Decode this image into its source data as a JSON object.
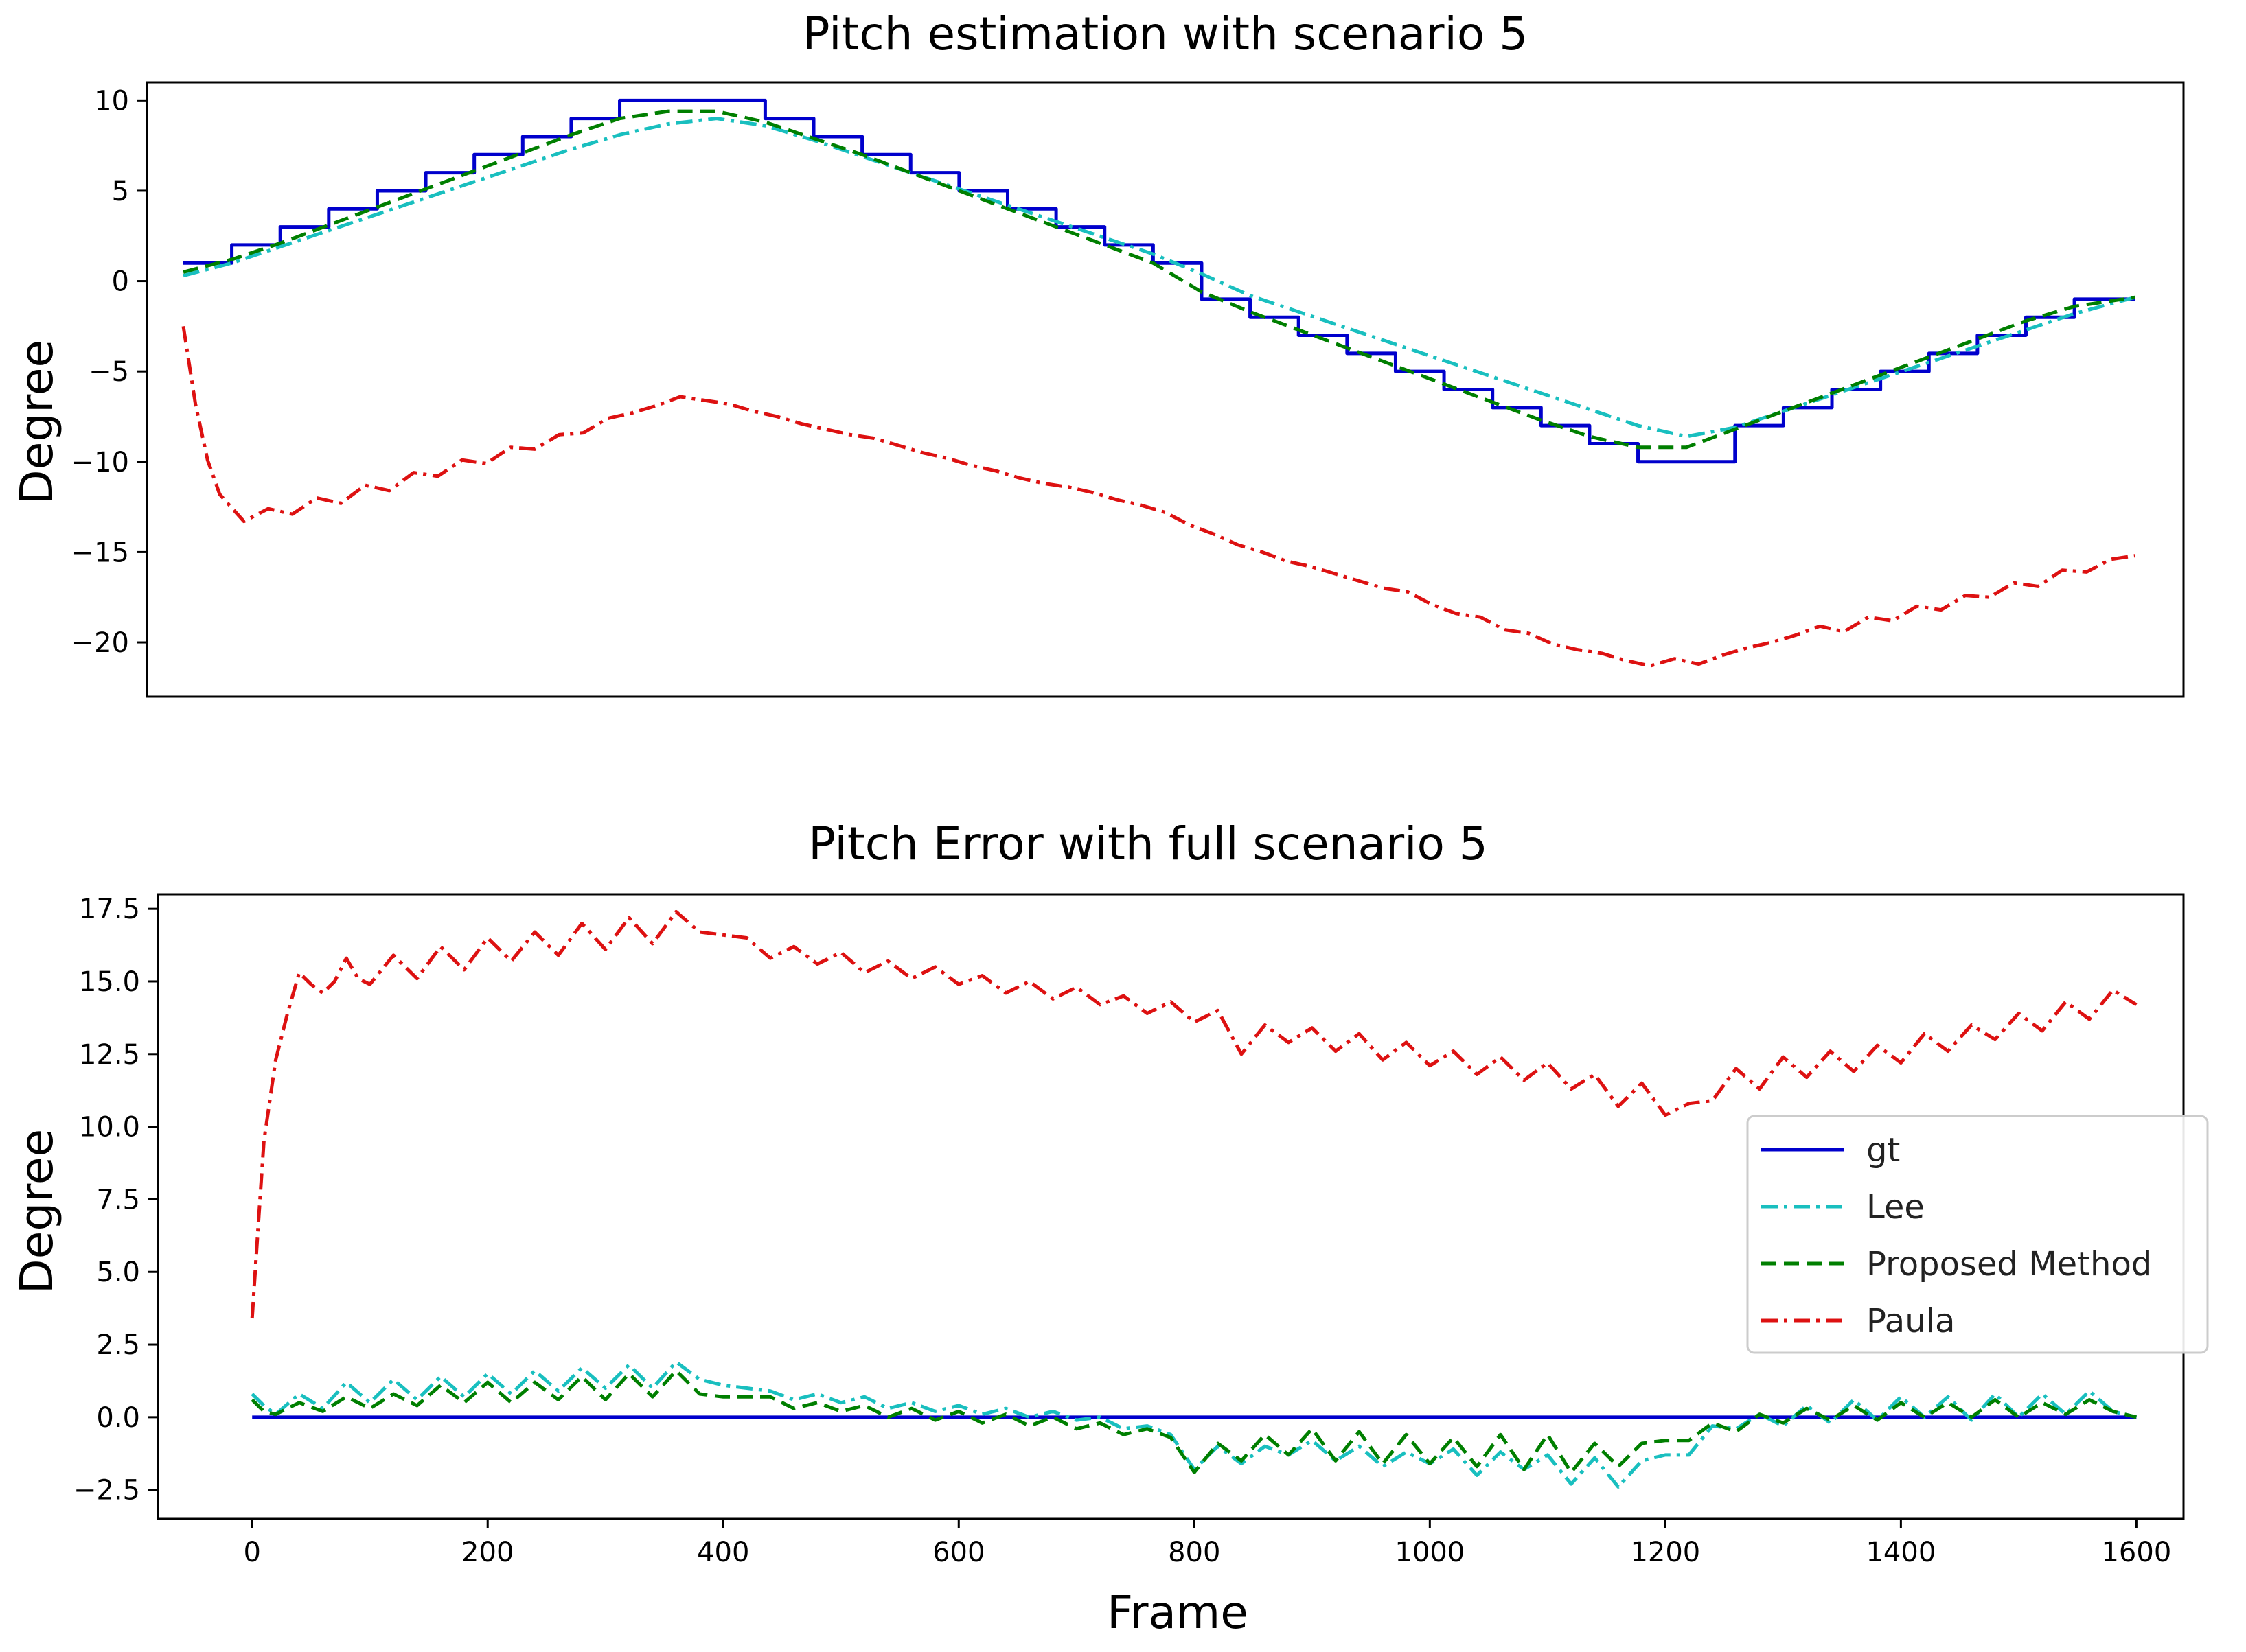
{
  "colors": {
    "gt": "#0000cc",
    "Lee": "#19bfbf",
    "Proposed Method": "#007f00",
    "Paula": "#dd1111"
  },
  "chart_data": [
    {
      "type": "line",
      "title": "Pitch estimation with scenario 5",
      "xlabel": "",
      "ylabel": "Degree",
      "xlim": [
        -40,
        1640
      ],
      "ylim": [
        -23,
        11
      ],
      "yticks": [
        10,
        5,
        0,
        -5,
        -10,
        -15,
        -20
      ],
      "ytick_labels": [
        "10",
        "5",
        "0",
        "−5",
        "−10",
        "−15",
        "−20"
      ],
      "series": [
        {
          "name": "gt",
          "style": "solid",
          "x": [
            -10,
            30,
            70,
            110,
            150,
            190,
            230,
            270,
            310,
            350,
            390,
            430,
            470,
            510,
            550,
            590,
            630,
            670,
            710,
            750,
            790,
            830,
            870,
            910,
            950,
            990,
            1030,
            1070,
            1110,
            1150,
            1190,
            1230,
            1270,
            1310,
            1350,
            1390,
            1430,
            1470,
            1510,
            1550,
            1590,
            1600
          ],
          "y": [
            1,
            2,
            3,
            4,
            5,
            6,
            7,
            8,
            9,
            10,
            10,
            10,
            9,
            8,
            7,
            6,
            5,
            4,
            3,
            2,
            1,
            -1,
            -2,
            -3,
            -4,
            -5,
            -6,
            -7,
            -8,
            -9,
            -10,
            -10,
            -8,
            -7,
            -6,
            -5,
            -4,
            -3,
            -2,
            -1,
            -1,
            -1
          ]
        },
        {
          "name": "Lee",
          "style": "dashdot",
          "x": [
            -10,
            30,
            70,
            110,
            150,
            190,
            230,
            270,
            310,
            350,
            390,
            430,
            470,
            510,
            550,
            590,
            630,
            670,
            710,
            750,
            790,
            830,
            870,
            910,
            950,
            990,
            1030,
            1070,
            1110,
            1150,
            1190,
            1230,
            1270,
            1310,
            1350,
            1390,
            1430,
            1470,
            1510,
            1550,
            1600
          ],
          "y": [
            0.3,
            1.0,
            1.9,
            2.8,
            3.7,
            4.6,
            5.5,
            6.4,
            7.3,
            8.1,
            8.7,
            9.0,
            8.6,
            7.8,
            6.9,
            6.0,
            5.1,
            4.2,
            3.3,
            2.4,
            1.5,
            0.4,
            -0.8,
            -1.7,
            -2.6,
            -3.5,
            -4.4,
            -5.3,
            -6.2,
            -7.1,
            -8.0,
            -8.6,
            -8.1,
            -7.2,
            -6.3,
            -5.4,
            -4.5,
            -3.6,
            -2.7,
            -1.8,
            -0.9
          ]
        },
        {
          "name": "Proposed Method",
          "style": "dashed",
          "x": [
            -10,
            30,
            70,
            110,
            150,
            190,
            230,
            270,
            310,
            350,
            390,
            430,
            470,
            510,
            550,
            590,
            630,
            670,
            710,
            750,
            790,
            830,
            870,
            910,
            950,
            990,
            1030,
            1070,
            1110,
            1150,
            1190,
            1230,
            1270,
            1310,
            1350,
            1390,
            1430,
            1470,
            1510,
            1550,
            1600
          ],
          "y": [
            0.5,
            1.2,
            2.1,
            3.1,
            4.1,
            5.1,
            6.1,
            7.1,
            8.1,
            9.0,
            9.4,
            9.4,
            8.8,
            7.9,
            7.0,
            6.0,
            5.0,
            4.0,
            3.0,
            2.0,
            1.0,
            -0.6,
            -1.7,
            -2.7,
            -3.7,
            -4.7,
            -5.7,
            -6.7,
            -7.7,
            -8.6,
            -9.2,
            -9.2,
            -8.2,
            -7.2,
            -6.2,
            -5.2,
            -4.2,
            -3.2,
            -2.2,
            -1.4,
            -0.9
          ]
        },
        {
          "name": "Paula",
          "style": "dashdot",
          "x": [
            -10,
            0,
            10,
            20,
            40,
            60,
            80,
            100,
            120,
            140,
            160,
            180,
            200,
            220,
            240,
            260,
            280,
            300,
            320,
            340,
            360,
            380,
            400,
            420,
            440,
            460,
            480,
            500,
            520,
            540,
            560,
            580,
            600,
            620,
            640,
            660,
            680,
            700,
            720,
            740,
            760,
            780,
            800,
            820,
            840,
            860,
            880,
            900,
            920,
            940,
            960,
            980,
            1000,
            1020,
            1040,
            1060,
            1080,
            1100,
            1120,
            1140,
            1160,
            1180,
            1200,
            1220,
            1240,
            1260,
            1280,
            1300,
            1320,
            1340,
            1360,
            1380,
            1400,
            1420,
            1440,
            1460,
            1480,
            1500,
            1520,
            1540,
            1560,
            1580,
            1600
          ],
          "y": [
            -2.5,
            -6.8,
            -9.9,
            -11.8,
            -13.3,
            -12.6,
            -12.9,
            -12.0,
            -12.3,
            -11.3,
            -11.6,
            -10.6,
            -10.8,
            -9.9,
            -10.1,
            -9.2,
            -9.3,
            -8.5,
            -8.4,
            -7.6,
            -7.3,
            -6.9,
            -6.4,
            -6.6,
            -6.8,
            -7.2,
            -7.5,
            -7.9,
            -8.2,
            -8.5,
            -8.7,
            -9.1,
            -9.5,
            -9.8,
            -10.2,
            -10.5,
            -10.9,
            -11.2,
            -11.4,
            -11.7,
            -12.1,
            -12.4,
            -12.8,
            -13.5,
            -14.0,
            -14.6,
            -15.0,
            -15.5,
            -15.8,
            -16.2,
            -16.6,
            -17.0,
            -17.2,
            -17.9,
            -18.4,
            -18.6,
            -19.3,
            -19.5,
            -20.1,
            -20.4,
            -20.6,
            -21.0,
            -21.3,
            -20.9,
            -21.2,
            -20.7,
            -20.3,
            -20.0,
            -19.6,
            -19.1,
            -19.4,
            -18.6,
            -18.8,
            -18.0,
            -18.2,
            -17.4,
            -17.5,
            -16.7,
            -16.9,
            -16.0,
            -16.1,
            -15.4,
            -15.2
          ]
        }
      ]
    },
    {
      "type": "line",
      "title": "Pitch Error with full scenario 5",
      "xlabel": "Frame",
      "ylabel": "Degree",
      "xlim": [
        -80,
        1640
      ],
      "ylim": [
        -3.5,
        18.0
      ],
      "xticks": [
        0,
        200,
        400,
        600,
        800,
        1000,
        1200,
        1400,
        1600
      ],
      "xtick_labels": [
        "0",
        "200",
        "400",
        "600",
        "800",
        "1000",
        "1200",
        "1400",
        "1600"
      ],
      "yticks": [
        17.5,
        15.0,
        12.5,
        10.0,
        7.5,
        5.0,
        2.5,
        0.0,
        -2.5
      ],
      "ytick_labels": [
        "17.5",
        "15.0",
        "12.5",
        "10.0",
        "7.5",
        "5.0",
        "2.5",
        "0.0",
        "−2.5"
      ],
      "legend_position": "center-right",
      "legend": [
        "gt",
        "Lee",
        "Proposed Method",
        "Paula"
      ],
      "series": [
        {
          "name": "gt",
          "style": "solid",
          "x": [
            0,
            1600
          ],
          "y": [
            0.0,
            0.0
          ]
        },
        {
          "name": "Lee",
          "style": "dashdot",
          "x": [
            0,
            10,
            20,
            40,
            60,
            80,
            100,
            120,
            140,
            160,
            180,
            200,
            220,
            240,
            260,
            280,
            300,
            320,
            340,
            360,
            380,
            400,
            420,
            440,
            460,
            480,
            500,
            520,
            540,
            560,
            580,
            600,
            620,
            640,
            660,
            680,
            700,
            720,
            740,
            760,
            780,
            800,
            820,
            840,
            860,
            880,
            900,
            920,
            940,
            960,
            980,
            1000,
            1020,
            1040,
            1060,
            1080,
            1100,
            1120,
            1140,
            1160,
            1180,
            1200,
            1220,
            1240,
            1260,
            1280,
            1300,
            1320,
            1340,
            1360,
            1380,
            1400,
            1420,
            1440,
            1460,
            1480,
            1500,
            1520,
            1540,
            1560,
            1580,
            1600
          ],
          "y": [
            0.8,
            0.4,
            0.1,
            0.8,
            0.3,
            1.2,
            0.5,
            1.3,
            0.6,
            1.4,
            0.7,
            1.5,
            0.8,
            1.6,
            0.9,
            1.7,
            1.0,
            1.8,
            1.0,
            1.9,
            1.3,
            1.1,
            1.0,
            0.9,
            0.6,
            0.8,
            0.5,
            0.7,
            0.3,
            0.5,
            0.2,
            0.4,
            0.1,
            0.3,
            0.0,
            0.2,
            -0.1,
            0.0,
            -0.4,
            -0.3,
            -0.6,
            -1.8,
            -1.0,
            -1.6,
            -1.0,
            -1.3,
            -0.8,
            -1.5,
            -1.0,
            -1.7,
            -1.2,
            -1.6,
            -1.1,
            -2.0,
            -1.2,
            -1.8,
            -1.3,
            -2.3,
            -1.4,
            -2.4,
            -1.5,
            -1.3,
            -1.3,
            -0.3,
            -0.4,
            0.1,
            -0.3,
            0.4,
            -0.2,
            0.6,
            -0.1,
            0.7,
            0.0,
            0.7,
            -0.1,
            0.8,
            0.0,
            0.8,
            0.1,
            0.9,
            0.2,
            0.0
          ]
        },
        {
          "name": "Proposed Method",
          "style": "dashed",
          "x": [
            0,
            10,
            20,
            40,
            60,
            80,
            100,
            120,
            140,
            160,
            180,
            200,
            220,
            240,
            260,
            280,
            300,
            320,
            340,
            360,
            380,
            400,
            420,
            440,
            460,
            480,
            500,
            520,
            540,
            560,
            580,
            600,
            620,
            640,
            660,
            680,
            700,
            720,
            740,
            760,
            780,
            800,
            820,
            840,
            860,
            880,
            900,
            920,
            940,
            960,
            980,
            1000,
            1020,
            1040,
            1060,
            1080,
            1100,
            1120,
            1140,
            1160,
            1180,
            1200,
            1220,
            1240,
            1260,
            1280,
            1300,
            1320,
            1340,
            1360,
            1380,
            1400,
            1420,
            1440,
            1460,
            1480,
            1500,
            1520,
            1540,
            1560,
            1580,
            1600
          ],
          "y": [
            0.6,
            0.2,
            0.1,
            0.5,
            0.2,
            0.7,
            0.3,
            0.8,
            0.4,
            1.1,
            0.5,
            1.2,
            0.5,
            1.2,
            0.6,
            1.4,
            0.6,
            1.5,
            0.7,
            1.6,
            0.8,
            0.7,
            0.7,
            0.7,
            0.3,
            0.5,
            0.2,
            0.4,
            0.0,
            0.3,
            -0.1,
            0.2,
            -0.2,
            0.1,
            -0.3,
            0.0,
            -0.4,
            -0.2,
            -0.6,
            -0.4,
            -0.7,
            -1.9,
            -0.9,
            -1.5,
            -0.6,
            -1.3,
            -0.4,
            -1.5,
            -0.5,
            -1.6,
            -0.6,
            -1.6,
            -0.7,
            -1.7,
            -0.6,
            -1.8,
            -0.6,
            -1.9,
            -0.9,
            -1.7,
            -0.9,
            -0.8,
            -0.8,
            -0.2,
            -0.5,
            0.1,
            -0.2,
            0.3,
            -0.1,
            0.4,
            -0.1,
            0.5,
            0.0,
            0.5,
            0.0,
            0.6,
            0.0,
            0.5,
            0.1,
            0.6,
            0.2,
            0.0
          ]
        },
        {
          "name": "Paula",
          "style": "dashdot",
          "x": [
            0,
            5,
            10,
            20,
            30,
            40,
            50,
            60,
            70,
            80,
            90,
            100,
            120,
            140,
            160,
            180,
            200,
            220,
            240,
            260,
            280,
            300,
            320,
            340,
            360,
            380,
            400,
            420,
            440,
            460,
            480,
            500,
            520,
            540,
            560,
            580,
            600,
            620,
            640,
            660,
            680,
            700,
            720,
            740,
            760,
            780,
            800,
            820,
            840,
            860,
            880,
            900,
            920,
            940,
            960,
            980,
            1000,
            1020,
            1040,
            1060,
            1080,
            1100,
            1120,
            1140,
            1160,
            1180,
            1200,
            1220,
            1240,
            1260,
            1280,
            1300,
            1320,
            1340,
            1360,
            1380,
            1400,
            1420,
            1440,
            1460,
            1480,
            1500,
            1520,
            1540,
            1560,
            1580,
            1600
          ],
          "y": [
            3.4,
            6.5,
            9.5,
            12.3,
            13.9,
            15.3,
            14.9,
            14.6,
            15.0,
            15.8,
            15.1,
            14.9,
            15.9,
            15.1,
            16.2,
            15.4,
            16.5,
            15.7,
            16.7,
            15.9,
            17.0,
            16.1,
            17.2,
            16.3,
            17.4,
            16.7,
            16.6,
            16.5,
            15.8,
            16.2,
            15.6,
            16.0,
            15.3,
            15.7,
            15.1,
            15.5,
            14.9,
            15.2,
            14.6,
            15.0,
            14.4,
            14.8,
            14.2,
            14.5,
            13.9,
            14.3,
            13.6,
            14.0,
            12.5,
            13.5,
            12.9,
            13.4,
            12.6,
            13.2,
            12.3,
            12.9,
            12.1,
            12.6,
            11.8,
            12.4,
            11.6,
            12.2,
            11.3,
            11.8,
            10.7,
            11.5,
            10.4,
            10.8,
            10.9,
            12.0,
            11.3,
            12.4,
            11.7,
            12.6,
            11.9,
            12.8,
            12.2,
            13.2,
            12.6,
            13.5,
            13.0,
            13.9,
            13.3,
            14.3,
            13.7,
            14.7,
            14.2
          ]
        }
      ]
    }
  ]
}
